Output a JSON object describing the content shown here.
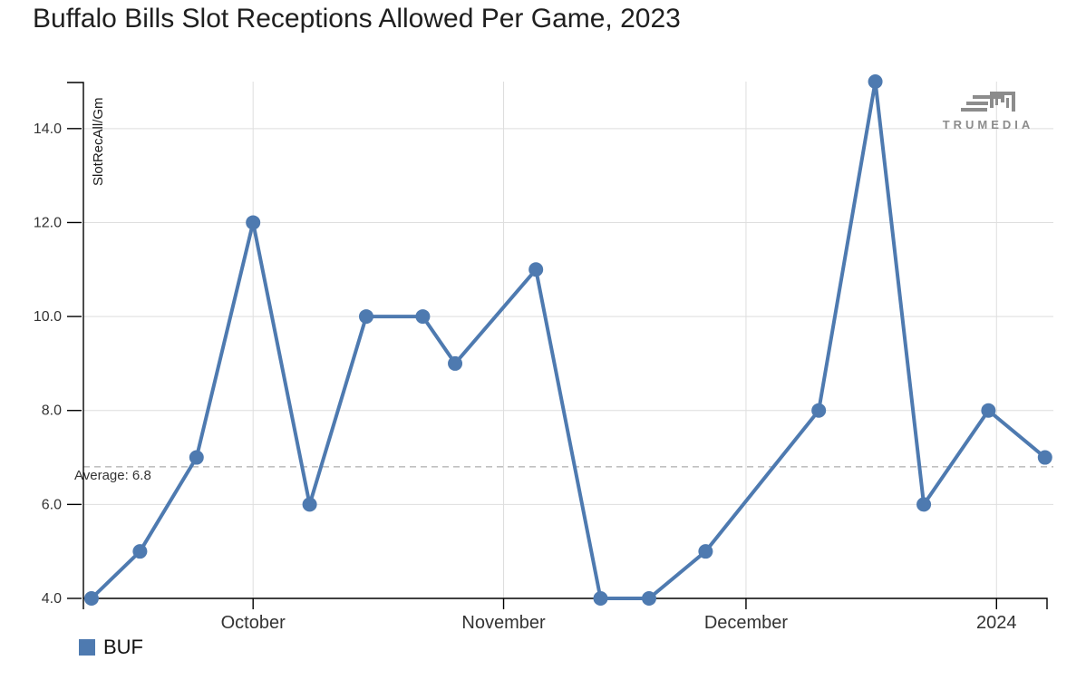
{
  "page_title": "Buffalo Bills Slot Receptions Allowed Per Game, 2023",
  "branding": {
    "logo_text": "TRUMEDIA"
  },
  "chart_data": {
    "type": "line",
    "title": "Buffalo Bills Slot Receptions Allowed Per Game, 2023",
    "xlabel": "",
    "ylabel": "SlotRecAll/Gm",
    "ylim": [
      4,
      15
    ],
    "xlim": [
      "2023-09-10",
      "2024-01-07T06:00Z"
    ],
    "grid": true,
    "legend_position": "bottom-left",
    "y_ticks": [
      {
        "value": 4,
        "label": "4.0"
      },
      {
        "value": 6,
        "label": "6.0"
      },
      {
        "value": 8,
        "label": "8.0"
      },
      {
        "value": 10,
        "label": "10.0"
      },
      {
        "value": 12,
        "label": "12.0"
      },
      {
        "value": 14,
        "label": "14.0"
      }
    ],
    "x_ticks": [
      {
        "date": "2023-10-01",
        "label": "October"
      },
      {
        "date": "2023-11-01",
        "label": "November"
      },
      {
        "date": "2023-12-01",
        "label": "December"
      },
      {
        "date": "2024-01-01",
        "label": "2024"
      }
    ],
    "average": {
      "value": 6.8,
      "label": "Average: 6.8"
    },
    "series": [
      {
        "name": "BUF",
        "color": "#4e7ab0",
        "points": [
          {
            "date": "2023-09-11",
            "value": 4
          },
          {
            "date": "2023-09-17",
            "value": 5
          },
          {
            "date": "2023-09-24",
            "value": 7
          },
          {
            "date": "2023-10-01",
            "value": 12
          },
          {
            "date": "2023-10-08",
            "value": 6
          },
          {
            "date": "2023-10-15",
            "value": 10
          },
          {
            "date": "2023-10-22",
            "value": 10
          },
          {
            "date": "2023-10-26",
            "value": 9
          },
          {
            "date": "2023-11-05",
            "value": 11
          },
          {
            "date": "2023-11-13",
            "value": 4
          },
          {
            "date": "2023-11-19",
            "value": 4
          },
          {
            "date": "2023-11-26",
            "value": 5
          },
          {
            "date": "2023-12-10",
            "value": 8
          },
          {
            "date": "2023-12-17",
            "value": 15
          },
          {
            "date": "2023-12-23",
            "value": 6
          },
          {
            "date": "2023-12-31",
            "value": 8
          },
          {
            "date": "2024-01-07",
            "value": 7
          }
        ]
      }
    ],
    "colors": {
      "line": "#4e7ab0",
      "grid": "#dedede",
      "average_line": "#9a9a9a",
      "axis": "#000000",
      "tick_label": "#333333",
      "logo": "#8c8c8c"
    }
  }
}
